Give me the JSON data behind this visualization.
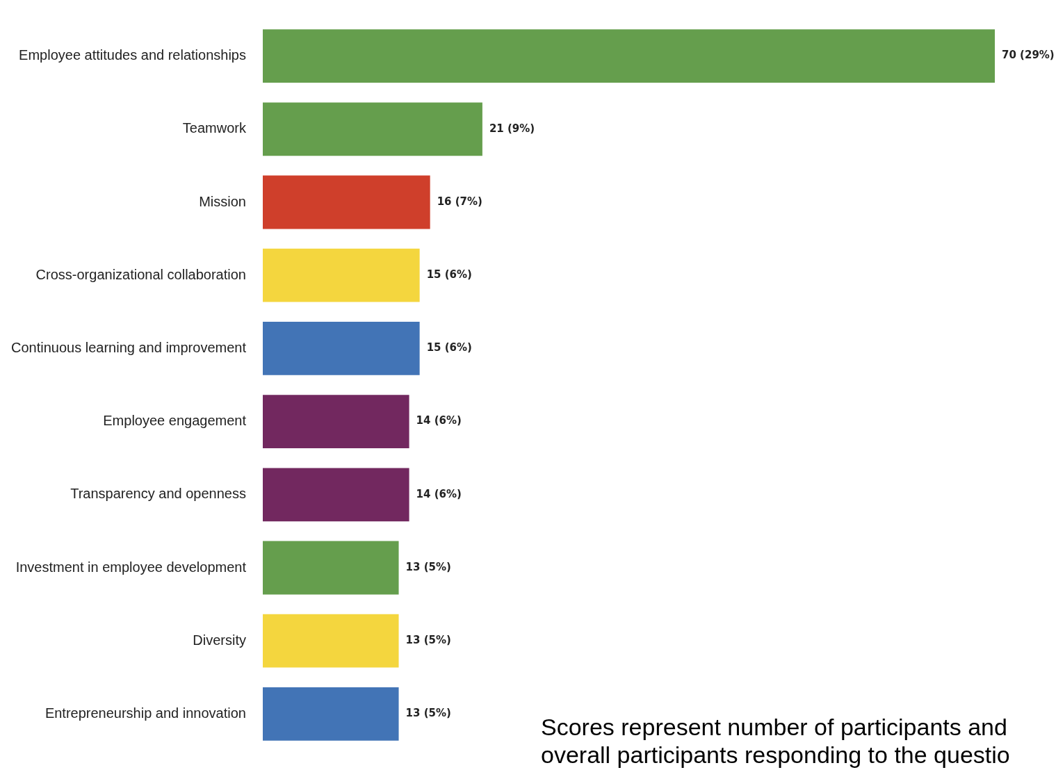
{
  "chart_data": {
    "type": "bar",
    "orientation": "horizontal",
    "tick_labels": "y",
    "categories": [
      "Employee attitudes and relationships",
      "Teamwork",
      "Mission",
      "Cross-organizational collaboration",
      "Continuous learning and improvement",
      "Employee engagement",
      "Transparency and openness",
      "Investment in employee development",
      "Diversity",
      "Entrepreneurship and innovation"
    ],
    "values": [
      70,
      21,
      16,
      15,
      15,
      14,
      14,
      13,
      13,
      13
    ],
    "colors": [
      "#659e4d",
      "#659e4d",
      "#cf3f2b",
      "#f4d63e",
      "#4274b6",
      "#72285f",
      "#72285f",
      "#659e4d",
      "#f4d63e",
      "#4274b6"
    ],
    "value_labels": [
      "70 (29%)",
      "21 (9%)",
      "16 (7%)",
      "15 (6%)",
      "15 (6%)",
      "14 (6%)",
      "14 (6%)",
      "13 (5%)",
      "13 (5%)",
      "13 (5%)"
    ],
    "annotations": [
      "Scores represent number of participants and overall participants responding to the questio"
    ]
  }
}
